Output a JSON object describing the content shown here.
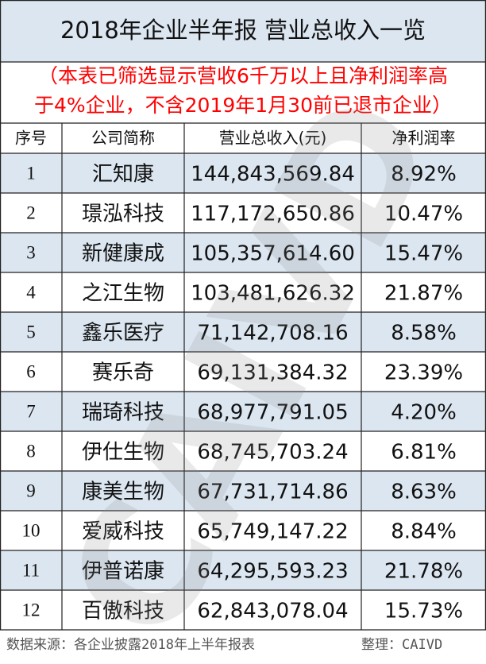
{
  "title": "2018年企业半年报 营业总收入一览",
  "note": [
    "（本表已筛选显示营收6千万以上且净利润率高",
    "于4%企业，不含2019年1月30前已退市企业）"
  ],
  "table": {
    "header": [
      "序号",
      "公司简称",
      "营业总收入(元)",
      "净利润率"
    ],
    "rows": [
      [
        "1",
        "汇知康",
        "144,843,569.84",
        "8.92%"
      ],
      [
        "2",
        "璟泓科技",
        "117,172,650.86",
        "10.47%"
      ],
      [
        "3",
        "新健康成",
        "105,357,614.60",
        "15.47%"
      ],
      [
        "4",
        "之江生物",
        "103,481,626.32",
        "21.87%"
      ],
      [
        "5",
        "鑫乐医疗",
        "71,142,708.16",
        "8.58%"
      ],
      [
        "6",
        "赛乐奇",
        "69,131,384.32",
        "23.39%"
      ],
      [
        "7",
        "瑞琦科技",
        "68,977,791.05",
        "4.20%"
      ],
      [
        "8",
        "伊仕生物",
        "68,745,703.24",
        "6.81%"
      ],
      [
        "9",
        "康美生物",
        "67,731,714.86",
        "8.63%"
      ],
      [
        "10",
        "爱威科技",
        "65,749,147.22",
        "8.84%"
      ],
      [
        "11",
        "伊普诺康",
        "64,295,593.23",
        "21.78%"
      ],
      [
        "12",
        "百傲科技",
        "62,843,078.04",
        "15.73%"
      ]
    ]
  },
  "footer": {
    "source": "数据来源：各企业披露2018年上半年报表",
    "compiler": "整理：CAIVD"
  },
  "watermark": "CAIVD"
}
